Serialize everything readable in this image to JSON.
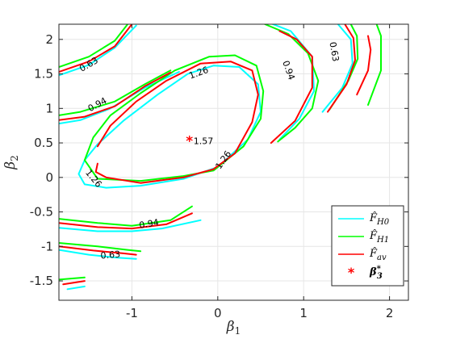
{
  "chart_data": {
    "type": "line",
    "title": "",
    "xlabel": "β1",
    "ylabel": "β2",
    "xlim": [
      -1.85,
      2.22
    ],
    "ylim": [
      -1.78,
      2.22
    ],
    "xticks": [
      -1,
      0,
      1,
      2
    ],
    "xtick_labels": [
      "-1",
      "0",
      "1",
      "2"
    ],
    "yticks": [
      -1.5,
      -1,
      -0.5,
      0,
      0.5,
      1,
      1.5,
      2
    ],
    "ytick_labels": [
      "-1.5",
      "-1",
      "-0.5",
      "0",
      "0.5",
      "1",
      "1.5",
      "2"
    ],
    "grid": true,
    "legend_position": "bottom-right",
    "series": [
      {
        "name": "F̂H0",
        "color": "#00ffff",
        "contours": [
          {
            "level": "1.26",
            "points": [
              [
                -1.55,
                0.25
              ],
              [
                -1.62,
                0.05
              ],
              [
                -1.55,
                -0.1
              ],
              [
                -1.3,
                -0.15
              ],
              [
                -0.9,
                -0.12
              ],
              [
                -0.4,
                -0.02
              ],
              [
                0.0,
                0.15
              ],
              [
                0.35,
                0.55
              ],
              [
                0.5,
                0.95
              ],
              [
                0.47,
                1.35
              ],
              [
                0.25,
                1.6
              ],
              [
                -0.05,
                1.62
              ],
              [
                -0.35,
                1.5
              ],
              [
                -0.7,
                1.2
              ],
              [
                -1.1,
                0.82
              ],
              [
                -1.4,
                0.48
              ],
              [
                -1.55,
                0.25
              ]
            ]
          },
          {
            "level": "0.94",
            "points": [
              [
                -1.85,
                0.78
              ],
              [
                -1.6,
                0.83
              ],
              [
                -1.25,
                1.0
              ],
              [
                -0.85,
                1.3
              ],
              [
                -0.45,
                1.53
              ]
            ]
          },
          {
            "level": "0.94",
            "points": [
              [
                0.72,
                0.55
              ],
              [
                0.95,
                0.85
              ],
              [
                1.12,
                1.25
              ],
              [
                1.1,
                1.75
              ],
              [
                0.85,
                2.12
              ],
              [
                0.58,
                2.25
              ]
            ]
          },
          {
            "level": "0.94",
            "points": [
              [
                -1.85,
                -0.73
              ],
              [
                -1.4,
                -0.78
              ],
              [
                -1.0,
                -0.78
              ],
              [
                -0.65,
                -0.74
              ],
              [
                -0.2,
                -0.62
              ]
            ]
          },
          {
            "level": "0.63",
            "points": [
              [
                -1.85,
                1.48
              ],
              [
                -1.5,
                1.63
              ],
              [
                -1.2,
                1.88
              ],
              [
                -0.95,
                2.2
              ]
            ]
          },
          {
            "level": "0.63",
            "points": [
              [
                1.22,
                0.95
              ],
              [
                1.45,
                1.3
              ],
              [
                1.57,
                1.65
              ],
              [
                1.55,
                2.0
              ],
              [
                1.4,
                2.22
              ]
            ]
          },
          {
            "level": "0.63",
            "points": [
              [
                -1.85,
                -1.05
              ],
              [
                -1.5,
                -1.12
              ],
              [
                -1.2,
                -1.16
              ],
              [
                -0.95,
                -1.18
              ]
            ]
          },
          {
            "level": "",
            "points": [
              [
                -1.75,
                -1.62
              ],
              [
                -1.55,
                -1.58
              ]
            ]
          }
        ]
      },
      {
        "name": "F̂H1",
        "color": "#00ff00",
        "contours": [
          {
            "level": "1.26",
            "points": [
              [
                -1.45,
                0.58
              ],
              [
                -1.55,
                0.25
              ],
              [
                -1.4,
                -0.02
              ],
              [
                -0.9,
                -0.05
              ],
              [
                -0.4,
                0.02
              ],
              [
                -0.05,
                0.1
              ],
              [
                0.3,
                0.45
              ],
              [
                0.5,
                0.85
              ],
              [
                0.53,
                1.25
              ],
              [
                0.45,
                1.62
              ],
              [
                0.2,
                1.77
              ],
              [
                -0.1,
                1.75
              ],
              [
                -0.5,
                1.55
              ],
              [
                -0.9,
                1.22
              ],
              [
                -1.25,
                0.9
              ],
              [
                -1.45,
                0.58
              ]
            ]
          },
          {
            "level": "0.94",
            "points": [
              [
                -1.85,
                0.9
              ],
              [
                -1.6,
                0.95
              ],
              [
                -1.2,
                1.1
              ],
              [
                -0.85,
                1.35
              ],
              [
                -0.55,
                1.55
              ]
            ]
          },
          {
            "level": "0.94",
            "points": [
              [
                0.55,
                2.22
              ],
              [
                0.82,
                2.08
              ],
              [
                1.05,
                1.8
              ],
              [
                1.17,
                1.4
              ],
              [
                1.1,
                1.0
              ],
              [
                0.9,
                0.72
              ],
              [
                0.7,
                0.52
              ]
            ]
          },
          {
            "level": "0.94",
            "points": [
              [
                -1.85,
                -0.6
              ],
              [
                -1.4,
                -0.66
              ],
              [
                -1.0,
                -0.7
              ],
              [
                -0.55,
                -0.62
              ],
              [
                -0.3,
                -0.42
              ]
            ]
          },
          {
            "level": "0.63",
            "points": [
              [
                -1.85,
                1.6
              ],
              [
                -1.5,
                1.75
              ],
              [
                -1.2,
                1.98
              ],
              [
                -1.05,
                2.22
              ]
            ]
          },
          {
            "level": "0.63",
            "points": [
              [
                1.3,
                0.98
              ],
              [
                1.52,
                1.4
              ],
              [
                1.63,
                1.72
              ],
              [
                1.62,
                2.05
              ],
              [
                1.55,
                2.22
              ]
            ]
          },
          {
            "level": "0.63",
            "points": [
              [
                -1.85,
                -0.95
              ],
              [
                -1.4,
                -1.0
              ],
              [
                -1.05,
                -1.05
              ],
              [
                -0.9,
                -1.07
              ]
            ]
          },
          {
            "level": "",
            "points": [
              [
                -1.85,
                -1.48
              ],
              [
                -1.55,
                -1.45
              ]
            ]
          },
          {
            "level": "",
            "points": [
              [
                1.75,
                1.05
              ],
              [
                1.9,
                1.55
              ],
              [
                1.9,
                2.05
              ],
              [
                1.85,
                2.22
              ]
            ]
          }
        ]
      },
      {
        "name": "F̂av",
        "color": "#ff0000",
        "contours": [
          {
            "level": "1.26",
            "points": [
              [
                -1.4,
                0.2
              ],
              [
                -1.42,
                0.08
              ],
              [
                -1.3,
                0.0
              ],
              [
                -0.9,
                -0.08
              ],
              [
                -0.4,
                0.0
              ],
              [
                -0.05,
                0.12
              ],
              [
                0.2,
                0.35
              ],
              [
                0.4,
                0.8
              ],
              [
                0.47,
                1.2
              ],
              [
                0.4,
                1.55
              ],
              [
                0.15,
                1.68
              ],
              [
                -0.2,
                1.65
              ],
              [
                -0.6,
                1.4
              ],
              [
                -0.95,
                1.1
              ],
              [
                -1.25,
                0.75
              ],
              [
                -1.4,
                0.45
              ]
            ]
          },
          {
            "level": "0.94",
            "points": [
              [
                -1.85,
                0.83
              ],
              [
                -1.55,
                0.88
              ],
              [
                -1.2,
                1.03
              ],
              [
                -0.85,
                1.32
              ],
              [
                -0.55,
                1.52
              ]
            ]
          },
          {
            "level": "0.94",
            "points": [
              [
                0.62,
                0.5
              ],
              [
                0.9,
                0.82
              ],
              [
                1.1,
                1.3
              ],
              [
                1.1,
                1.75
              ],
              [
                0.92,
                2.0
              ],
              [
                0.72,
                2.12
              ]
            ]
          },
          {
            "level": "0.94",
            "points": [
              [
                -1.85,
                -0.66
              ],
              [
                -1.4,
                -0.72
              ],
              [
                -1.0,
                -0.74
              ],
              [
                -0.6,
                -0.68
              ],
              [
                -0.3,
                -0.52
              ]
            ]
          },
          {
            "level": "0.63",
            "points": [
              [
                -1.85,
                1.53
              ],
              [
                -1.5,
                1.68
              ],
              [
                -1.2,
                1.9
              ],
              [
                -1.0,
                2.22
              ]
            ]
          },
          {
            "level": "0.63",
            "points": [
              [
                1.28,
                0.95
              ],
              [
                1.5,
                1.35
              ],
              [
                1.6,
                1.7
              ],
              [
                1.58,
                2.02
              ],
              [
                1.48,
                2.22
              ]
            ]
          },
          {
            "level": "0.63",
            "points": [
              [
                -1.85,
                -1.0
              ],
              [
                -1.45,
                -1.06
              ],
              [
                -1.1,
                -1.1
              ],
              [
                -0.95,
                -1.12
              ]
            ]
          },
          {
            "level": "",
            "points": [
              [
                -1.8,
                -1.55
              ],
              [
                -1.55,
                -1.5
              ]
            ]
          },
          {
            "level": "",
            "points": [
              [
                1.62,
                1.2
              ],
              [
                1.75,
                1.55
              ],
              [
                1.78,
                1.85
              ],
              [
                1.75,
                2.05
              ]
            ]
          }
        ]
      }
    ],
    "contour_labels": [
      {
        "text": "0.63",
        "x": -1.5,
        "y": 1.63,
        "angle": -30
      },
      {
        "text": "0.94",
        "x": -1.4,
        "y": 1.05,
        "angle": -28
      },
      {
        "text": "1.26",
        "x": -0.22,
        "y": 1.51,
        "angle": -20
      },
      {
        "text": "1.26",
        "x": -1.45,
        "y": -0.02,
        "angle": 50
      },
      {
        "text": "1.26",
        "x": 0.07,
        "y": 0.25,
        "angle": -55
      },
      {
        "text": "0.94",
        "x": 0.82,
        "y": 1.55,
        "angle": 70
      },
      {
        "text": "0.63",
        "x": 1.35,
        "y": 1.82,
        "angle": 80
      },
      {
        "text": "0.94",
        "x": -0.8,
        "y": -0.68,
        "angle": -10
      },
      {
        "text": "0.63",
        "x": -1.25,
        "y": -1.13,
        "angle": -5
      }
    ],
    "markers": [
      {
        "name": "β3*",
        "x": -0.33,
        "y": 0.53,
        "value_label": "1.57",
        "color": "#ff0000",
        "symbol": "*"
      }
    ]
  }
}
